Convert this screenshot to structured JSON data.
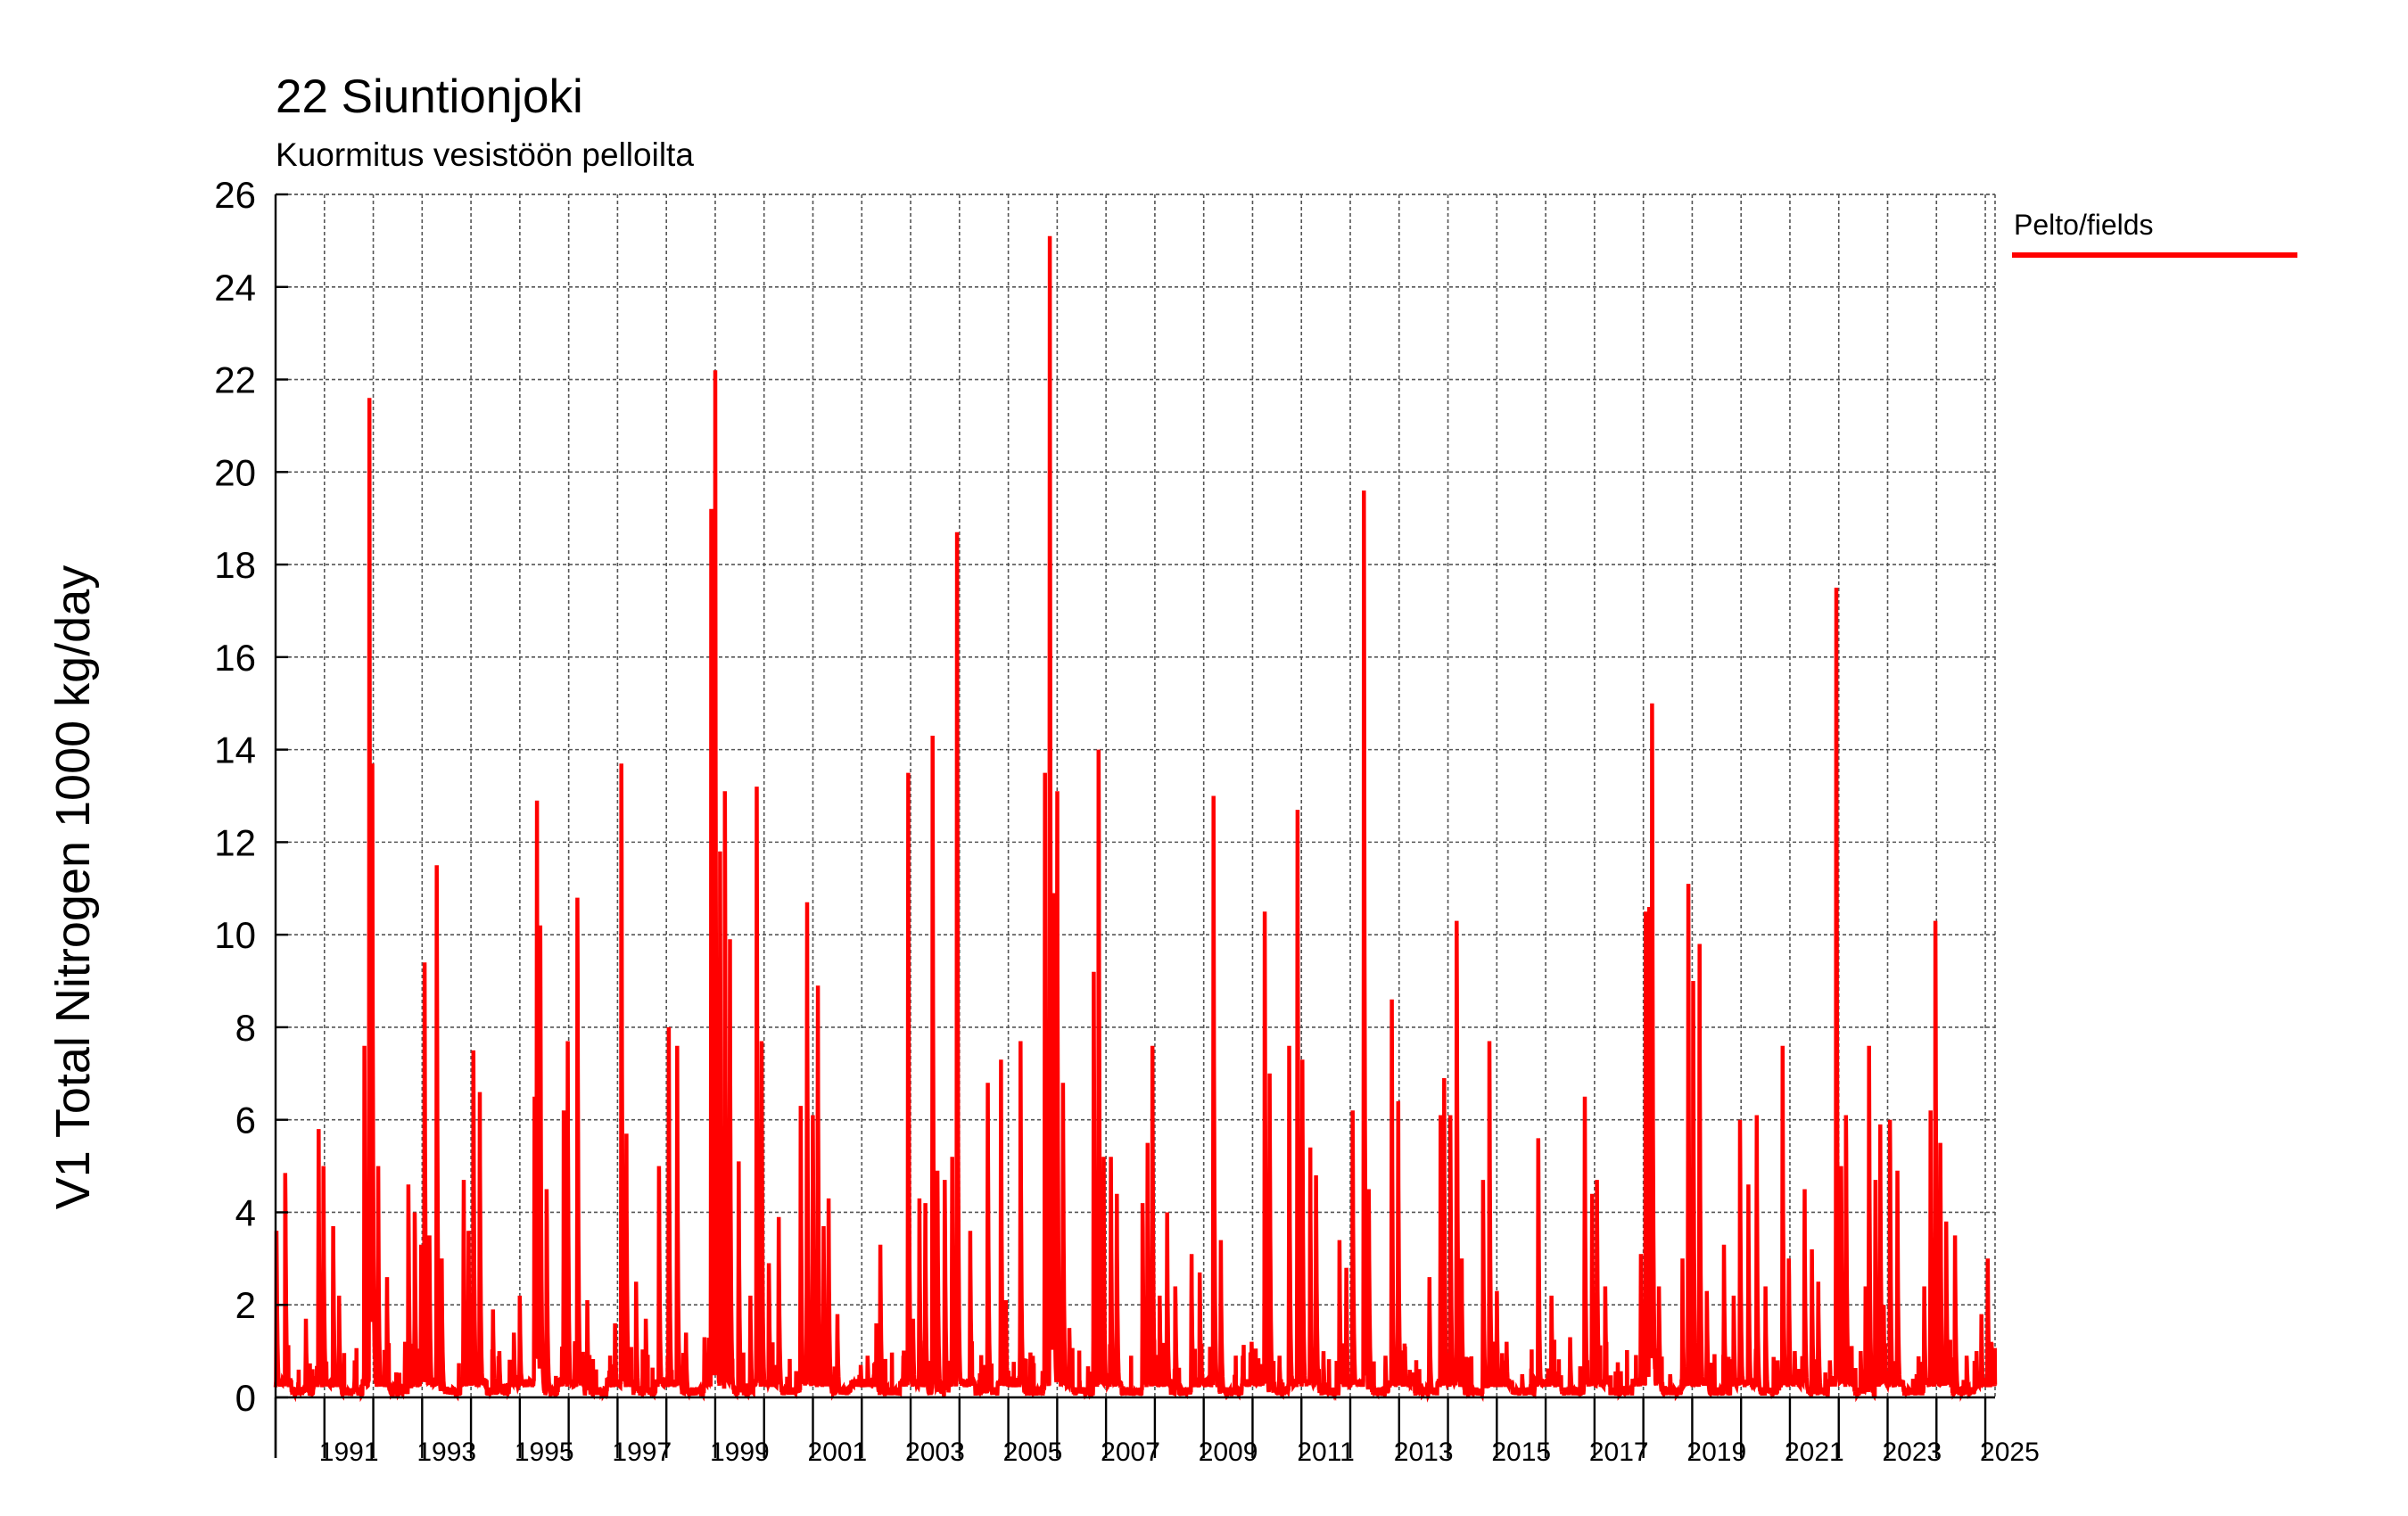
{
  "chart_data": {
    "type": "line",
    "title": "22 Siuntionjoki",
    "subtitle": "Kuormitus vesistöön pelloilta",
    "ylabel": "V1 Total Nitrogen 1000 kg/day",
    "xlabel": "",
    "ylim": [
      0,
      26
    ],
    "yticks": [
      0,
      2,
      4,
      6,
      8,
      10,
      12,
      14,
      16,
      18,
      20,
      22,
      24,
      26
    ],
    "xlim": [
      1990.0,
      2025.2
    ],
    "xtick_labels": [
      "1991",
      "1993",
      "1995",
      "1997",
      "1999",
      "2001",
      "2003",
      "2005",
      "2007",
      "2009",
      "2011",
      "2013",
      "2015",
      "2017",
      "2019",
      "2021",
      "2023",
      "2025"
    ],
    "grid": true,
    "legend_position": "right",
    "series": [
      {
        "name": "Pelto/fields",
        "color": "#ff0000",
        "baseline": 0.15,
        "peaks": [
          [
            1990.02,
            3.6
          ],
          [
            1990.2,
            4.85
          ],
          [
            1990.62,
            1.7
          ],
          [
            1990.88,
            5.8
          ],
          [
            1990.98,
            5.0
          ],
          [
            1991.18,
            3.7
          ],
          [
            1991.3,
            2.2
          ],
          [
            1991.62,
            0.8
          ],
          [
            1991.82,
            7.6
          ],
          [
            1991.92,
            21.6
          ],
          [
            1991.98,
            13.7
          ],
          [
            1992.1,
            5.0
          ],
          [
            1992.28,
            2.6
          ],
          [
            1992.65,
            1.2
          ],
          [
            1992.72,
            4.6
          ],
          [
            1992.85,
            4.0
          ],
          [
            1992.98,
            3.3
          ],
          [
            1993.05,
            9.4
          ],
          [
            1993.15,
            3.5
          ],
          [
            1993.3,
            11.5
          ],
          [
            1993.4,
            3.0
          ],
          [
            1993.85,
            4.7
          ],
          [
            1993.95,
            3.6
          ],
          [
            1994.05,
            7.5
          ],
          [
            1994.18,
            6.6
          ],
          [
            1994.45,
            1.9
          ],
          [
            1994.58,
            1.0
          ],
          [
            1994.88,
            1.4
          ],
          [
            1995.0,
            2.2
          ],
          [
            1995.3,
            6.5
          ],
          [
            1995.35,
            12.9
          ],
          [
            1995.42,
            10.2
          ],
          [
            1995.55,
            4.5
          ],
          [
            1995.9,
            6.2
          ],
          [
            1995.98,
            7.7
          ],
          [
            1996.18,
            10.8
          ],
          [
            1996.38,
            2.1
          ],
          [
            1996.95,
            1.6
          ],
          [
            1997.08,
            13.7
          ],
          [
            1997.18,
            5.7
          ],
          [
            1997.38,
            2.5
          ],
          [
            1997.58,
            1.7
          ],
          [
            1997.85,
            5.0
          ],
          [
            1998.05,
            8.0
          ],
          [
            1998.22,
            7.6
          ],
          [
            1998.4,
            1.4
          ],
          [
            1998.78,
            1.3
          ],
          [
            1998.92,
            19.2
          ],
          [
            1999.0,
            22.2
          ],
          [
            1999.1,
            11.8
          ],
          [
            1999.2,
            13.1
          ],
          [
            1999.3,
            9.9
          ],
          [
            1999.48,
            5.1
          ],
          [
            1999.72,
            2.2
          ],
          [
            1999.85,
            13.2
          ],
          [
            1999.95,
            7.7
          ],
          [
            2000.1,
            2.9
          ],
          [
            2000.3,
            3.9
          ],
          [
            2000.75,
            6.3
          ],
          [
            2000.88,
            10.7
          ],
          [
            2001.0,
            6.1
          ],
          [
            2001.1,
            8.9
          ],
          [
            2001.22,
            3.7
          ],
          [
            2001.32,
            4.3
          ],
          [
            2001.5,
            1.8
          ],
          [
            2001.98,
            0.7
          ],
          [
            2002.12,
            0.9
          ],
          [
            2002.3,
            1.6
          ],
          [
            2002.38,
            3.3
          ],
          [
            2002.85,
            0.9
          ],
          [
            2002.95,
            13.5
          ],
          [
            2003.05,
            1.7
          ],
          [
            2003.18,
            4.3
          ],
          [
            2003.3,
            4.2
          ],
          [
            2003.45,
            14.3
          ],
          [
            2003.55,
            4.9
          ],
          [
            2003.7,
            4.7
          ],
          [
            2003.85,
            5.2
          ],
          [
            2003.95,
            18.7
          ],
          [
            2004.22,
            3.6
          ],
          [
            2004.5,
            0.7
          ],
          [
            2004.58,
            6.8
          ],
          [
            2004.85,
            7.3
          ],
          [
            2004.95,
            2.1
          ],
          [
            2005.25,
            7.7
          ],
          [
            2005.45,
            0.5
          ],
          [
            2005.75,
            13.5
          ],
          [
            2005.85,
            25.1
          ],
          [
            2005.92,
            10.9
          ],
          [
            2006.0,
            13.1
          ],
          [
            2006.12,
            6.8
          ],
          [
            2006.25,
            1.5
          ],
          [
            2006.75,
            9.2
          ],
          [
            2006.85,
            14.0
          ],
          [
            2006.95,
            5.2
          ],
          [
            2007.1,
            5.2
          ],
          [
            2007.22,
            4.4
          ],
          [
            2007.75,
            4.2
          ],
          [
            2007.85,
            5.5
          ],
          [
            2007.95,
            7.6
          ],
          [
            2008.1,
            2.2
          ],
          [
            2008.25,
            4.0
          ],
          [
            2008.42,
            2.4
          ],
          [
            2008.75,
            3.1
          ],
          [
            2008.92,
            2.7
          ],
          [
            2009.2,
            13.0
          ],
          [
            2009.35,
            3.4
          ],
          [
            2009.8,
            0.9
          ],
          [
            2009.98,
            1.2
          ],
          [
            2010.25,
            10.5
          ],
          [
            2010.35,
            7.0
          ],
          [
            2010.55,
            0.9
          ],
          [
            2010.75,
            7.6
          ],
          [
            2010.92,
            12.7
          ],
          [
            2011.02,
            7.3
          ],
          [
            2011.18,
            5.4
          ],
          [
            2011.3,
            4.8
          ],
          [
            2011.45,
            1.0
          ],
          [
            2011.78,
            3.4
          ],
          [
            2011.92,
            2.8
          ],
          [
            2012.05,
            6.2
          ],
          [
            2012.28,
            19.6
          ],
          [
            2012.38,
            4.5
          ],
          [
            2012.72,
            0.9
          ],
          [
            2012.85,
            8.6
          ],
          [
            2012.98,
            6.4
          ],
          [
            2013.12,
            1.1
          ],
          [
            2013.62,
            2.6
          ],
          [
            2013.85,
            6.1
          ],
          [
            2013.92,
            6.9
          ],
          [
            2014.05,
            6.1
          ],
          [
            2014.18,
            10.3
          ],
          [
            2014.28,
            3.0
          ],
          [
            2014.72,
            4.7
          ],
          [
            2014.85,
            7.7
          ],
          [
            2015.0,
            2.3
          ],
          [
            2015.2,
            1.2
          ],
          [
            2015.52,
            0.5
          ],
          [
            2015.85,
            5.6
          ],
          [
            2016.12,
            2.2
          ],
          [
            2016.5,
            1.3
          ],
          [
            2016.8,
            6.5
          ],
          [
            2016.95,
            4.4
          ],
          [
            2017.05,
            4.7
          ],
          [
            2017.22,
            2.4
          ],
          [
            2017.55,
            0.2
          ],
          [
            2017.78,
            0.4
          ],
          [
            2017.95,
            3.1
          ],
          [
            2018.05,
            10.5
          ],
          [
            2018.12,
            10.6
          ],
          [
            2018.18,
            15.0
          ],
          [
            2018.32,
            2.4
          ],
          [
            2018.55,
            0.5
          ],
          [
            2018.8,
            3.0
          ],
          [
            2018.92,
            11.1
          ],
          [
            2019.02,
            9.0
          ],
          [
            2019.15,
            9.8
          ],
          [
            2019.3,
            2.3
          ],
          [
            2019.65,
            3.3
          ],
          [
            2019.85,
            2.2
          ],
          [
            2019.98,
            6.0
          ],
          [
            2020.15,
            4.6
          ],
          [
            2020.32,
            6.1
          ],
          [
            2020.5,
            2.4
          ],
          [
            2020.75,
            0.8
          ],
          [
            2020.85,
            7.6
          ],
          [
            2020.98,
            3.0
          ],
          [
            2021.1,
            1.0
          ],
          [
            2021.3,
            4.5
          ],
          [
            2021.45,
            3.2
          ],
          [
            2021.58,
            2.5
          ],
          [
            2021.82,
            0.8
          ],
          [
            2021.95,
            17.5
          ],
          [
            2022.05,
            5.0
          ],
          [
            2022.15,
            6.1
          ],
          [
            2022.45,
            1.0
          ],
          [
            2022.55,
            2.4
          ],
          [
            2022.62,
            7.6
          ],
          [
            2022.75,
            4.7
          ],
          [
            2022.85,
            5.9
          ],
          [
            2022.92,
            2.0
          ],
          [
            2023.05,
            6.0
          ],
          [
            2023.2,
            4.9
          ],
          [
            2023.52,
            0.4
          ],
          [
            2023.75,
            2.4
          ],
          [
            2023.88,
            6.2
          ],
          [
            2023.98,
            10.3
          ],
          [
            2024.08,
            5.5
          ],
          [
            2024.2,
            3.8
          ],
          [
            2024.38,
            3.5
          ],
          [
            2024.62,
            0.9
          ],
          [
            2024.82,
            1.0
          ],
          [
            2024.92,
            1.8
          ],
          [
            2025.05,
            3.0
          ],
          [
            2025.12,
            1.2
          ]
        ]
      }
    ]
  }
}
